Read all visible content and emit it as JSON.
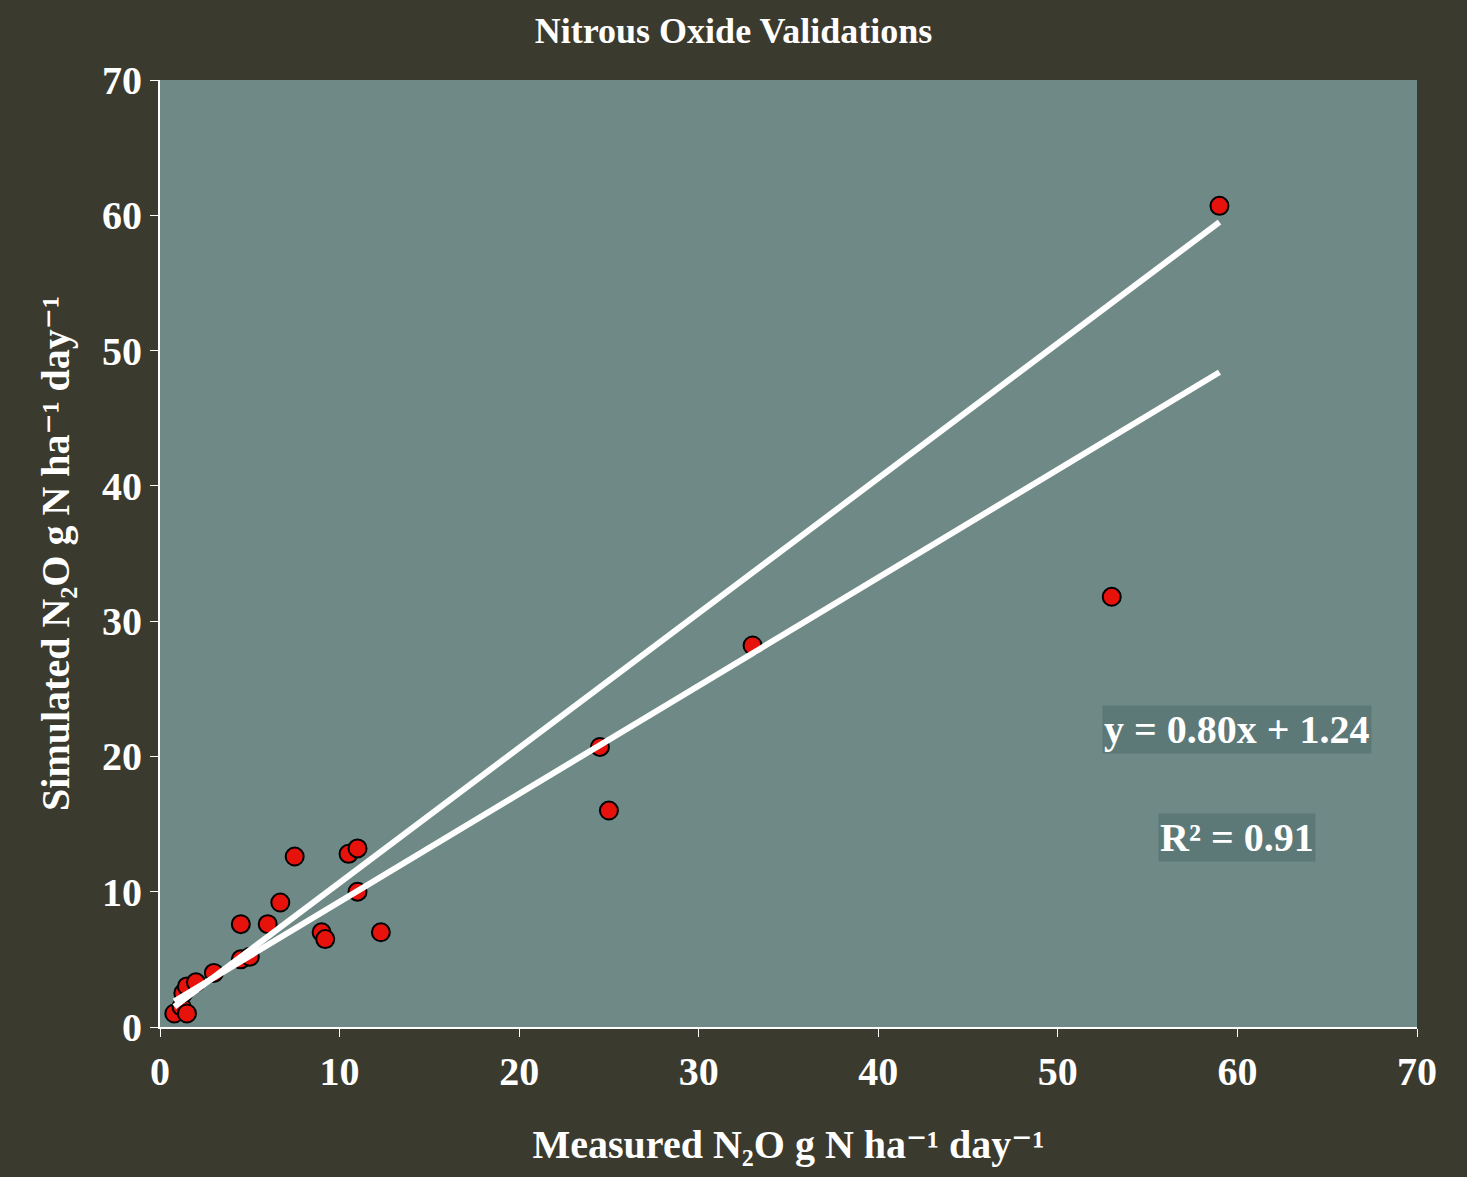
{
  "chart_data": {
    "type": "scatter",
    "title": "Nitrous Oxide Validations",
    "x_label": "Measured N₂O g N ha⁻¹ day⁻¹",
    "y_label": "Simulated N₂O g N ha⁻¹ day⁻¹",
    "xlim": [
      0,
      70
    ],
    "ylim": [
      0,
      70
    ],
    "xticks": [
      0,
      10,
      20,
      30,
      40,
      50,
      60,
      70
    ],
    "yticks": [
      0,
      10,
      20,
      30,
      40,
      50,
      60,
      70
    ],
    "grid": false,
    "annotations": [
      "y = 0.80x + 1.24",
      "R² = 0.91"
    ],
    "series": [
      {
        "type": "scatter",
        "marker": "circle",
        "color": "#e8120c",
        "x": [
          0.8,
          1.2,
          1.5,
          1.3,
          1.5,
          2,
          3,
          4.5,
          4.5,
          5,
          6,
          6.7,
          7.5,
          9,
          9.2,
          10.5,
          11,
          11,
          12.3,
          24.5,
          25,
          33,
          53,
          59
        ],
        "y": [
          1,
          1.5,
          1,
          2.5,
          3,
          3.3,
          4,
          5,
          7.6,
          5.2,
          7.6,
          9.2,
          12.6,
          7,
          6.5,
          12.8,
          13.2,
          10,
          7,
          20.7,
          16,
          28.2,
          31.8,
          60.7
        ]
      },
      {
        "type": "line",
        "line_style": "solid",
        "color": "#ffffff",
        "x": [
          0.8,
          59
        ],
        "y": [
          1.5,
          59.5
        ]
      },
      {
        "type": "line",
        "line_style": "solid",
        "color": "#ffffff",
        "x": [
          0.8,
          59
        ],
        "y": [
          1.9,
          48.4
        ]
      }
    ]
  }
}
